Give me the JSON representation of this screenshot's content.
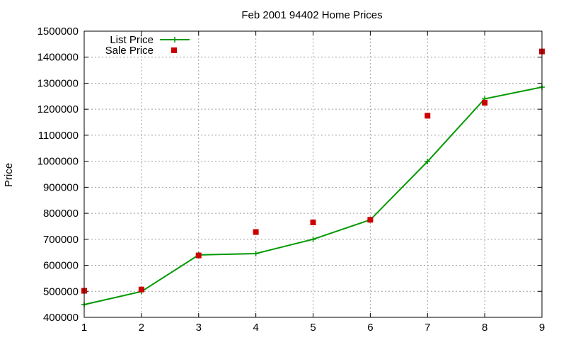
{
  "chart_data": {
    "type": "line",
    "title": "Feb 2001 94402 Home Prices",
    "xlabel": "",
    "ylabel": "Price",
    "xlim": [
      1,
      9
    ],
    "ylim": [
      400000,
      1500000
    ],
    "x_ticks": [
      1,
      2,
      3,
      4,
      5,
      6,
      7,
      8,
      9
    ],
    "y_ticks": [
      400000,
      500000,
      600000,
      700000,
      800000,
      900000,
      1000000,
      1100000,
      1200000,
      1300000,
      1400000,
      1500000
    ],
    "grid": true,
    "legend_position": "top-left",
    "series": [
      {
        "name": "List Price",
        "style": "line-with-crosses",
        "color": "#009900",
        "x": [
          1,
          2,
          3,
          4,
          5,
          6,
          7,
          8,
          9
        ],
        "values": [
          449000,
          499000,
          640000,
          645000,
          700000,
          775000,
          999000,
          1240000,
          1285000
        ]
      },
      {
        "name": "Sale Price",
        "style": "squares",
        "color": "#cc0000",
        "x": [
          1,
          2,
          3,
          4,
          5,
          6,
          7,
          8,
          9
        ],
        "values": [
          502000,
          507000,
          638000,
          728000,
          765000,
          775000,
          1175000,
          1225000,
          1422000
        ]
      }
    ]
  }
}
